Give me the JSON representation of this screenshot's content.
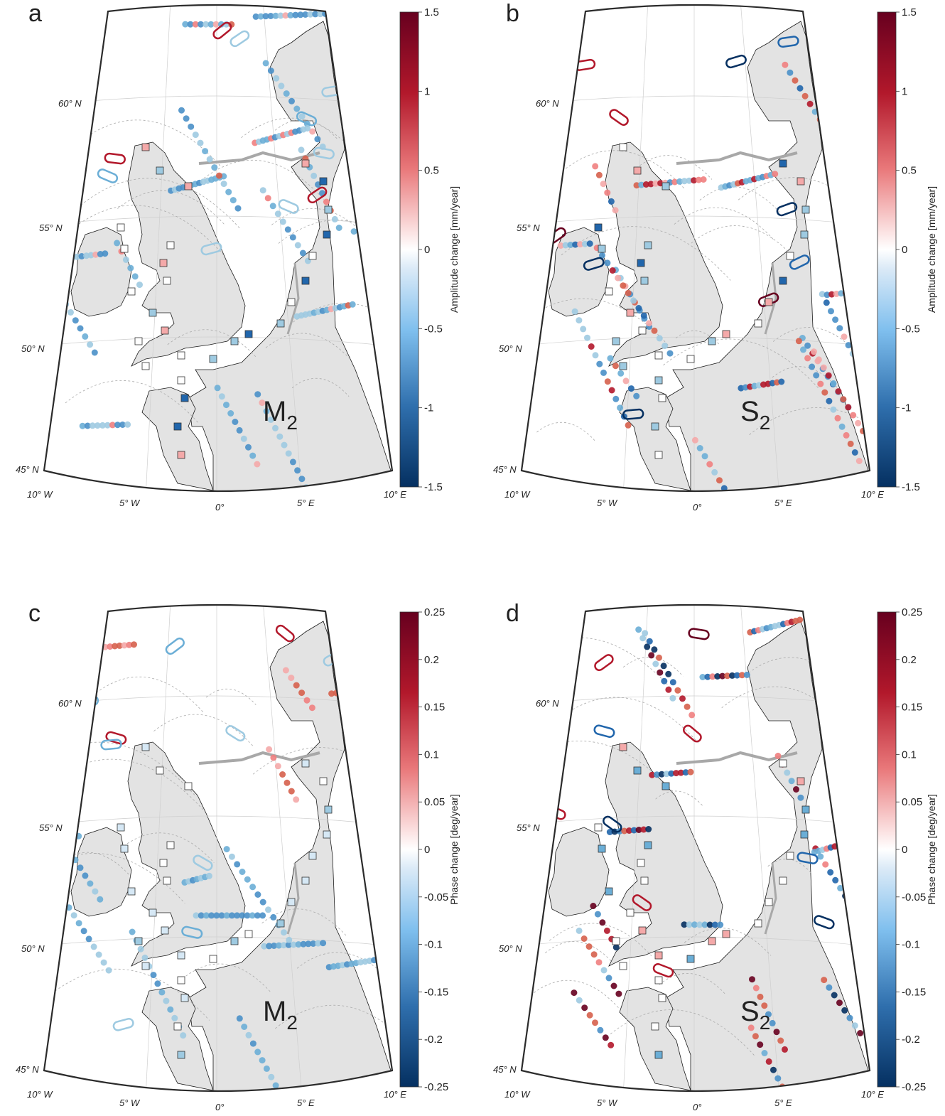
{
  "panels": [
    {
      "letter": "a",
      "constituent": "M",
      "sub": "2",
      "cbar_label": "Amplitude change [mm/year]",
      "cbar_ticks": [
        "1.5",
        "1",
        "0.5",
        "0",
        "-0.5",
        "-1",
        "-1.5"
      ]
    },
    {
      "letter": "b",
      "constituent": "S",
      "sub": "2",
      "cbar_label": "Amplitude change [mm/year]",
      "cbar_ticks": [
        "1.5",
        "1",
        "0.5",
        "0",
        "-0.5",
        "-1",
        "-1.5"
      ]
    },
    {
      "letter": "c",
      "constituent": "M",
      "sub": "2",
      "cbar_label": "Phase change [deg/year]",
      "cbar_ticks": [
        "0.25",
        "0.2",
        "0.15",
        "0.1",
        "0.05",
        "0",
        "-0.05",
        "-0.1",
        "-0.15",
        "-0.2",
        "-0.25"
      ]
    },
    {
      "letter": "d",
      "constituent": "S",
      "sub": "2",
      "cbar_label": "Phase change [deg/year]",
      "cbar_ticks": [
        "0.25",
        "0.2",
        "0.15",
        "0.1",
        "0.05",
        "0",
        "-0.05",
        "-0.1",
        "-0.15",
        "-0.2",
        "-0.25"
      ]
    }
  ],
  "lat_labels": [
    "60° N",
    "55° N",
    "50° N",
    "45° N"
  ],
  "lon_labels": [
    "10° W",
    "5° W",
    "0°",
    "5° E",
    "10° E"
  ],
  "colors": {
    "positive": "#67001f",
    "negative": "#053061",
    "land": "#e3e3e3",
    "sea": "#ffffff",
    "coast": "#1a1a1a"
  }
}
